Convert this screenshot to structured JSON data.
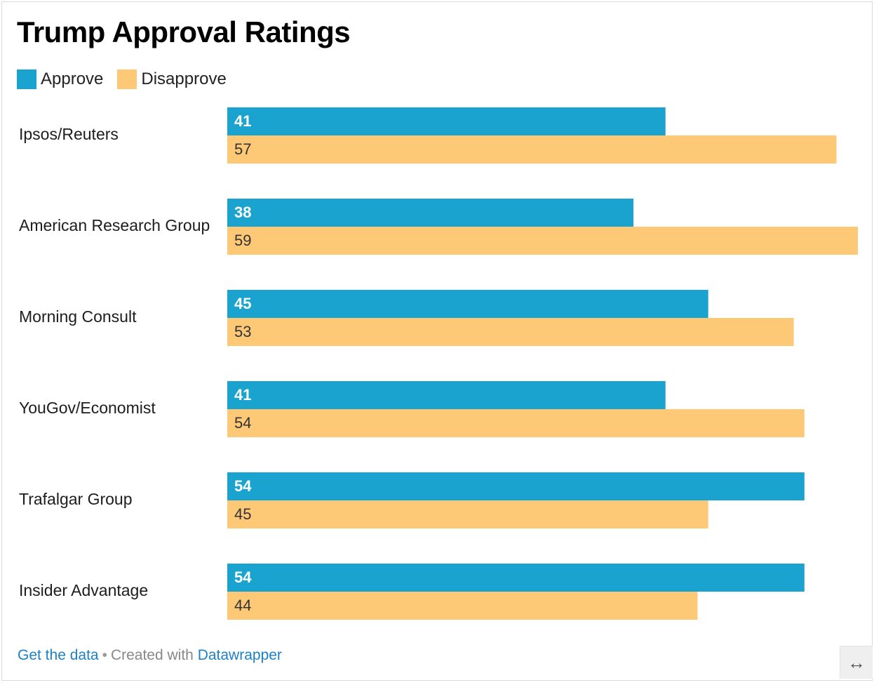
{
  "title": "Trump Approval Ratings",
  "legend": [
    {
      "label": "Approve",
      "color": "#1ba3d0"
    },
    {
      "label": "Disapprove",
      "color": "#fec976"
    }
  ],
  "footer": {
    "get_data": "Get the data",
    "separator": "•",
    "created_with": "Created with",
    "datawrapper": "Datawrapper"
  },
  "expand_icon": "↔",
  "chart_data": {
    "type": "bar",
    "orientation": "horizontal",
    "categories": [
      "Ipsos/Reuters",
      "American Research Group",
      "Morning Consult",
      "YouGov/Economist",
      "Trafalgar Group",
      "Insider Advantage"
    ],
    "series": [
      {
        "name": "Approve",
        "color": "#1ba3d0",
        "label_color": "#ffffff",
        "values": [
          41,
          38,
          45,
          41,
          54,
          54
        ]
      },
      {
        "name": "Disapprove",
        "color": "#fec976",
        "label_color": "#333333",
        "values": [
          57,
          59,
          53,
          54,
          45,
          44
        ]
      }
    ],
    "xlim": [
      0,
      59
    ],
    "grid": false,
    "legend_position": "top-left"
  }
}
